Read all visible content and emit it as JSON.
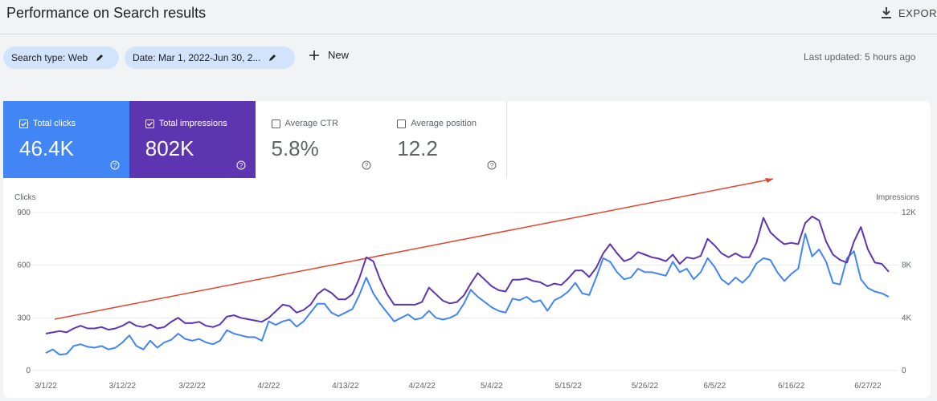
{
  "header": {
    "title": "Performance on Search results",
    "export": "EXPORT"
  },
  "filters": {
    "search_type": "Search type: Web",
    "date": "Date: Mar 1, 2022-Jun 30, 2...",
    "new": "New",
    "last_updated": "Last updated: 5 hours ago"
  },
  "metrics": [
    {
      "label": "Total clicks",
      "value": "46.4K",
      "color": "#4285f4",
      "checked": true
    },
    {
      "label": "Total impressions",
      "value": "802K",
      "color": "#5e35b1",
      "checked": true
    },
    {
      "label": "Average CTR",
      "value": "5.8%",
      "color": "#ffffff",
      "checked": false
    },
    {
      "label": "Average position",
      "value": "12.2",
      "color": "#ffffff",
      "checked": false
    }
  ],
  "chart_data": {
    "type": "line",
    "ylabel": "Clicks",
    "y2label": "Impressions",
    "categories": [
      "3/1/22",
      null,
      null,
      null,
      null,
      null,
      null,
      null,
      null,
      null,
      null,
      "3/12/22",
      null,
      null,
      null,
      null,
      null,
      null,
      null,
      null,
      null,
      "3/22/22",
      null,
      null,
      null,
      null,
      null,
      null,
      null,
      null,
      null,
      null,
      "4/2/22",
      null,
      null,
      null,
      null,
      null,
      null,
      null,
      null,
      null,
      null,
      "4/13/22",
      null,
      null,
      null,
      null,
      null,
      null,
      null,
      null,
      null,
      null,
      "4/24/22",
      null,
      null,
      null,
      null,
      null,
      null,
      null,
      null,
      null,
      "5/4/22",
      null,
      null,
      null,
      null,
      null,
      null,
      null,
      null,
      null,
      null,
      "5/15/22",
      null,
      null,
      null,
      null,
      null,
      null,
      null,
      null,
      null,
      null,
      "5/26/22",
      null,
      null,
      null,
      null,
      null,
      null,
      null,
      null,
      null,
      "6/5/22",
      null,
      null,
      null,
      null,
      null,
      null,
      null,
      null,
      null,
      null,
      "6/16/22",
      null,
      null,
      null,
      null,
      null,
      null,
      null,
      null,
      null,
      null,
      "6/27/22",
      null,
      null,
      null
    ],
    "ylim": [
      0,
      900
    ],
    "yticks": [
      0,
      300,
      600,
      900
    ],
    "y2lim": [
      0,
      12000
    ],
    "y2ticks": [
      0,
      {
        "value": 4000,
        "label": "4K"
      },
      {
        "value": 8000,
        "label": "8K"
      },
      {
        "value": 12000,
        "label": "12K"
      }
    ],
    "grid": true,
    "series": [
      {
        "color": "#4285f4",
        "values": [
          100,
          120,
          90,
          95,
          140,
          150,
          135,
          130,
          140,
          120,
          130,
          160,
          200,
          140,
          120,
          170,
          130,
          160,
          175,
          210,
          180,
          170,
          180,
          160,
          150,
          170,
          230,
          210,
          200,
          190,
          190,
          170,
          280,
          260,
          280,
          290,
          250,
          280,
          330,
          380,
          380,
          330,
          310,
          330,
          350,
          430,
          530,
          440,
          380,
          330,
          280,
          300,
          320,
          290,
          300,
          340,
          300,
          290,
          300,
          320,
          380,
          460,
          420,
          390,
          360,
          340,
          330,
          410,
          400,
          420,
          390,
          400,
          340,
          400,
          420,
          450,
          500,
          440,
          430,
          530,
          640,
          620,
          560,
          520,
          530,
          580,
          560,
          560,
          550,
          540,
          620,
          560,
          580,
          520,
          560,
          640,
          590,
          520,
          490,
          530,
          500,
          540,
          610,
          640,
          630,
          560,
          510,
          550,
          580,
          780,
          650,
          690,
          620,
          500,
          490,
          640,
          680,
          520,
          470,
          450,
          440,
          420
        ]
      },
      {
        "color": "#5e35b1",
        "axis": "y2",
        "values": [
          2800,
          2900,
          3000,
          2900,
          3200,
          3400,
          3200,
          3200,
          3300,
          3100,
          3200,
          3400,
          3700,
          3400,
          3300,
          3500,
          3200,
          3300,
          3700,
          4000,
          3600,
          3600,
          3700,
          3400,
          3300,
          3500,
          4100,
          4200,
          4000,
          3900,
          3800,
          3700,
          4000,
          4500,
          5000,
          4900,
          4400,
          4600,
          5000,
          5800,
          6200,
          5900,
          5400,
          5400,
          5800,
          7000,
          8600,
          8300,
          6900,
          5800,
          5000,
          5000,
          5000,
          5000,
          5200,
          6300,
          5800,
          5300,
          5100,
          5200,
          5700,
          6600,
          7400,
          6900,
          6400,
          6100,
          6000,
          6900,
          6900,
          7000,
          6800,
          6700,
          6400,
          6600,
          6500,
          7000,
          7600,
          7600,
          7100,
          7800,
          8900,
          9600,
          8900,
          8300,
          8500,
          9000,
          8800,
          8600,
          8500,
          8300,
          8800,
          8100,
          8600,
          8500,
          8700,
          10000,
          9500,
          8900,
          8600,
          8900,
          8600,
          8600,
          9700,
          11600,
          10500,
          10000,
          9600,
          9700,
          9600,
          11200,
          11700,
          11400,
          9800,
          8800,
          8400,
          8200,
          9800,
          10900,
          9200,
          8200,
          8100,
          7500
        ]
      }
    ]
  }
}
